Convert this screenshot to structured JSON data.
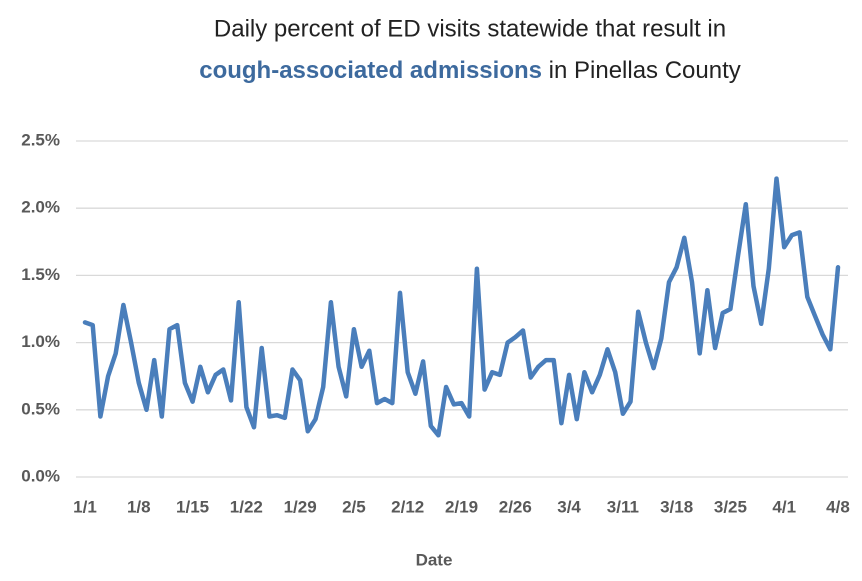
{
  "chart_data": {
    "type": "line",
    "title": "Daily percent of ED visits statewide that result in",
    "subtitle_highlight": "cough-associated admissions",
    "subtitle_rest": " in Pinellas County",
    "x_label": "Date",
    "color": "#4a7ebb",
    "highlight_color": "#3d6a9e",
    "grid": true,
    "categories": [
      "1/1",
      null,
      null,
      null,
      null,
      null,
      null,
      "1/8",
      null,
      null,
      null,
      null,
      null,
      null,
      "1/15",
      null,
      null,
      null,
      null,
      null,
      null,
      "1/22",
      null,
      null,
      null,
      null,
      null,
      null,
      "1/29",
      null,
      null,
      null,
      null,
      null,
      null,
      "2/5",
      null,
      null,
      null,
      null,
      null,
      null,
      "2/12",
      null,
      null,
      null,
      null,
      null,
      null,
      "2/19",
      null,
      null,
      null,
      null,
      null,
      null,
      "2/26",
      null,
      null,
      null,
      null,
      null,
      null,
      "3/4",
      null,
      null,
      null,
      null,
      null,
      null,
      "3/11",
      null,
      null,
      null,
      null,
      null,
      null,
      "3/18",
      null,
      null,
      null,
      null,
      null,
      null,
      "3/25",
      null,
      null,
      null,
      null,
      null,
      null,
      "4/1",
      null,
      null,
      null,
      null,
      null,
      null,
      "4/8"
    ],
    "values": [
      1.15,
      1.13,
      0.45,
      0.75,
      0.92,
      1.28,
      1.0,
      0.7,
      0.5,
      0.87,
      0.45,
      1.1,
      1.13,
      0.7,
      0.56,
      0.82,
      0.63,
      0.76,
      0.8,
      0.57,
      1.3,
      0.52,
      0.37,
      0.96,
      0.45,
      0.46,
      0.44,
      0.8,
      0.72,
      0.34,
      0.43,
      0.67,
      1.3,
      0.82,
      0.6,
      1.1,
      0.82,
      0.94,
      0.55,
      0.58,
      0.55,
      1.37,
      0.78,
      0.62,
      0.86,
      0.38,
      0.31,
      0.67,
      0.54,
      0.55,
      0.45,
      1.55,
      0.65,
      0.78,
      0.76,
      1.0,
      1.04,
      1.09,
      0.74,
      0.82,
      0.87,
      0.87,
      0.4,
      0.76,
      0.43,
      0.78,
      0.63,
      0.76,
      0.95,
      0.78,
      0.47,
      0.56,
      1.23,
      1.0,
      0.81,
      1.03,
      1.45,
      1.56,
      1.78,
      1.45,
      0.92,
      1.39,
      0.96,
      1.22,
      1.25,
      1.65,
      2.03,
      1.42,
      1.14,
      1.55,
      2.22,
      1.71,
      1.8,
      1.82,
      1.34,
      1.2,
      1.06,
      0.95,
      1.56
    ],
    "ylim": [
      0,
      2.5
    ],
    "yticks": [
      {
        "value": 0,
        "label": "0.0%"
      },
      {
        "value": 0.5,
        "label": "0.5%"
      },
      {
        "value": 1,
        "label": "1.0%"
      },
      {
        "value": 1.5,
        "label": "1.5%"
      },
      {
        "value": 2,
        "label": "2.0%"
      },
      {
        "value": 2.5,
        "label": "2.5%"
      }
    ]
  }
}
